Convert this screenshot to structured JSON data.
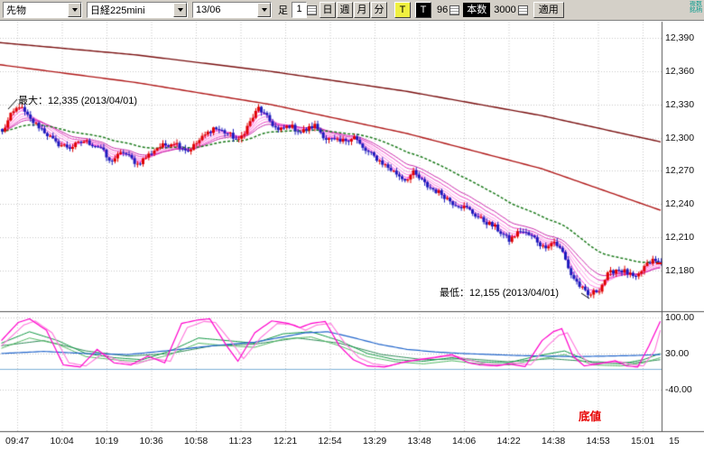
{
  "toolbar": {
    "market_select": "先物",
    "symbol_select": "日経225mini",
    "contract_select": "13/06",
    "ashi_label": "足",
    "btn_1": "1",
    "btn_day": "日",
    "btn_week": "週",
    "btn_month": "月",
    "btn_min": "分",
    "btn_t_yellow": "T",
    "btn_t_black": "T",
    "tick_value": "96",
    "honsu_label": "本数",
    "bars_value": "3000",
    "apply_btn": "適用",
    "corner_note": "複数銘柄"
  },
  "chart_data": {
    "type": "candlestick",
    "x_labels": [
      "09:47",
      "10:04",
      "10:19",
      "10:36",
      "10:58",
      "11:23",
      "12:21",
      "12:54",
      "13:29",
      "13:48",
      "14:06",
      "14:22",
      "14:38",
      "14:53",
      "15:01",
      "15"
    ],
    "main_pane": {
      "ylim": [
        12143,
        12405
      ],
      "y_ticks": [
        12390,
        12360,
        12330,
        12300,
        12270,
        12240,
        12210,
        12180
      ],
      "y_tick_labels": [
        "12,390",
        "12,360",
        "12,330",
        "12,300",
        "12,270",
        "12,240",
        "12,210",
        "12,180"
      ],
      "high": {
        "label": "最大：12,335 (2013/04/01)",
        "value": 12335
      },
      "low": {
        "label": "最低：12,155 (2013/04/01)",
        "value": 12155
      },
      "candle_count": 235,
      "close_path": [
        [
          0,
          12305
        ],
        [
          3,
          12320
        ],
        [
          6,
          12329
        ],
        [
          10,
          12316
        ],
        [
          14,
          12308
        ],
        [
          19,
          12295
        ],
        [
          24,
          12291
        ],
        [
          29,
          12297
        ],
        [
          35,
          12291
        ],
        [
          38,
          12278
        ],
        [
          43,
          12287
        ],
        [
          48,
          12276
        ],
        [
          55,
          12291
        ],
        [
          61,
          12296
        ],
        [
          66,
          12288
        ],
        [
          71,
          12300
        ],
        [
          75,
          12309
        ],
        [
          80,
          12304
        ],
        [
          84,
          12297
        ],
        [
          87,
          12310
        ],
        [
          91,
          12327
        ],
        [
          95,
          12315
        ],
        [
          98,
          12306
        ],
        [
          102,
          12311
        ],
        [
          106,
          12305
        ],
        [
          111,
          12311
        ],
        [
          115,
          12299
        ],
        [
          120,
          12296
        ],
        [
          125,
          12301
        ],
        [
          128,
          12290
        ],
        [
          133,
          12281
        ],
        [
          138,
          12271
        ],
        [
          143,
          12262
        ],
        [
          146,
          12268
        ],
        [
          151,
          12256
        ],
        [
          156,
          12249
        ],
        [
          160,
          12241
        ],
        [
          165,
          12236
        ],
        [
          170,
          12226
        ],
        [
          175,
          12219
        ],
        [
          180,
          12207
        ],
        [
          184,
          12216
        ],
        [
          189,
          12209
        ],
        [
          192,
          12201
        ],
        [
          196,
          12206
        ],
        [
          199,
          12196
        ],
        [
          202,
          12176
        ],
        [
          205,
          12166
        ],
        [
          208,
          12157
        ],
        [
          212,
          12163
        ],
        [
          215,
          12176
        ],
        [
          218,
          12181
        ],
        [
          221,
          12179
        ],
        [
          225,
          12172
        ],
        [
          228,
          12183
        ],
        [
          231,
          12189
        ],
        [
          234,
          12186
        ]
      ],
      "ma_ribbon_periods": [
        3,
        5,
        8,
        11,
        15,
        20
      ],
      "ma_green_period": 45,
      "long_ma1": [
        [
          0,
          12386
        ],
        [
          150,
          12375
        ],
        [
          300,
          12360
        ],
        [
          450,
          12342
        ],
        [
          600,
          12320
        ],
        [
          733,
          12296
        ]
      ],
      "long_ma2": [
        [
          0,
          12366
        ],
        [
          150,
          12350
        ],
        [
          300,
          12330
        ],
        [
          450,
          12304
        ],
        [
          600,
          12272
        ],
        [
          733,
          12234
        ]
      ]
    },
    "lower_pane": {
      "ylim": [
        -120,
        110
      ],
      "y_ticks": [
        100,
        30,
        -40
      ],
      "y_tick_labels": [
        "100.00",
        "30.00",
        "-40.00"
      ],
      "level_line": 0,
      "label": {
        "text": "底値",
        "color": "#e60000"
      },
      "series": [
        {
          "name": "slow-green",
          "color": "#2e8b57",
          "width": 1,
          "points": [
            [
              0,
              45
            ],
            [
              15,
              55
            ],
            [
              30,
              35
            ],
            [
              45,
              25
            ],
            [
              60,
              30
            ],
            [
              75,
              45
            ],
            [
              90,
              48
            ],
            [
              105,
              60
            ],
            [
              120,
              50
            ],
            [
              135,
              28
            ],
            [
              150,
              18
            ],
            [
              165,
              20
            ],
            [
              180,
              14
            ],
            [
              195,
              20
            ],
            [
              210,
              14
            ],
            [
              225,
              12
            ],
            [
              234,
              18
            ]
          ]
        },
        {
          "name": "light-green",
          "color": "#55bb66",
          "width": 1,
          "points": [
            [
              0,
              40
            ],
            [
              10,
              60
            ],
            [
              20,
              48
            ],
            [
              30,
              24
            ],
            [
              40,
              18
            ],
            [
              50,
              14
            ],
            [
              60,
              28
            ],
            [
              70,
              50
            ],
            [
              80,
              45
            ],
            [
              90,
              42
            ],
            [
              100,
              58
            ],
            [
              110,
              62
            ],
            [
              120,
              45
            ],
            [
              130,
              24
            ],
            [
              140,
              14
            ],
            [
              150,
              10
            ],
            [
              160,
              16
            ],
            [
              170,
              10
            ],
            [
              180,
              8
            ],
            [
              190,
              18
            ],
            [
              200,
              28
            ],
            [
              210,
              8
            ],
            [
              220,
              6
            ],
            [
              228,
              12
            ],
            [
              234,
              22
            ]
          ]
        },
        {
          "name": "green",
          "color": "#119944",
          "width": 1,
          "points": [
            [
              0,
              50
            ],
            [
              10,
              72
            ],
            [
              20,
              55
            ],
            [
              30,
              30
            ],
            [
              40,
              22
            ],
            [
              50,
              18
            ],
            [
              60,
              35
            ],
            [
              70,
              60
            ],
            [
              80,
              55
            ],
            [
              90,
              50
            ],
            [
              100,
              68
            ],
            [
              110,
              72
            ],
            [
              120,
              55
            ],
            [
              130,
              30
            ],
            [
              140,
              18
            ],
            [
              150,
              15
            ],
            [
              160,
              22
            ],
            [
              170,
              14
            ],
            [
              180,
              12
            ],
            [
              190,
              25
            ],
            [
              200,
              35
            ],
            [
              210,
              12
            ],
            [
              220,
              10
            ],
            [
              228,
              18
            ],
            [
              234,
              30
            ]
          ]
        },
        {
          "name": "blue",
          "color": "#2266cc",
          "width": 1.2,
          "points": [
            [
              0,
              30
            ],
            [
              15,
              34
            ],
            [
              30,
              30
            ],
            [
              45,
              28
            ],
            [
              60,
              36
            ],
            [
              75,
              45
            ],
            [
              90,
              52
            ],
            [
              100,
              62
            ],
            [
              108,
              70
            ],
            [
              116,
              72
            ],
            [
              124,
              62
            ],
            [
              134,
              48
            ],
            [
              144,
              38
            ],
            [
              154,
              33
            ],
            [
              164,
              30
            ],
            [
              174,
              28
            ],
            [
              184,
              26
            ],
            [
              194,
              25
            ],
            [
              204,
              24
            ],
            [
              214,
              25
            ],
            [
              224,
              26
            ],
            [
              234,
              28
            ]
          ]
        },
        {
          "name": "fast-pink",
          "color": "#ff77dd",
          "width": 1.1,
          "points": [
            [
              0,
              45
            ],
            [
              8,
              85
            ],
            [
              12,
              93
            ],
            [
              18,
              70
            ],
            [
              24,
              12
            ],
            [
              30,
              6
            ],
            [
              36,
              30
            ],
            [
              42,
              15
            ],
            [
              48,
              10
            ],
            [
              54,
              20
            ],
            [
              60,
              15
            ],
            [
              66,
              80
            ],
            [
              72,
              92
            ],
            [
              76,
              90
            ],
            [
              82,
              50
            ],
            [
              86,
              20
            ],
            [
              92,
              60
            ],
            [
              98,
              88
            ],
            [
              104,
              85
            ],
            [
              108,
              75
            ],
            [
              112,
              85
            ],
            [
              117,
              88
            ],
            [
              122,
              50
            ],
            [
              127,
              22
            ],
            [
              132,
              10
            ],
            [
              138,
              6
            ],
            [
              144,
              15
            ],
            [
              150,
              20
            ],
            [
              156,
              25
            ],
            [
              162,
              24
            ],
            [
              168,
              15
            ],
            [
              172,
              10
            ],
            [
              178,
              8
            ],
            [
              182,
              12
            ],
            [
              188,
              8
            ],
            [
              194,
              45
            ],
            [
              198,
              65
            ],
            [
              201,
              70
            ],
            [
              205,
              30
            ],
            [
              209,
              10
            ],
            [
              214,
              12
            ],
            [
              220,
              14
            ],
            [
              224,
              8
            ],
            [
              228,
              6
            ],
            [
              232,
              35
            ],
            [
              234,
              75
            ]
          ]
        },
        {
          "name": "fast-magenta",
          "color": "#ff00cc",
          "width": 1.2,
          "points": [
            [
              0,
              55
            ],
            [
              6,
              90
            ],
            [
              10,
              97
            ],
            [
              16,
              75
            ],
            [
              22,
              8
            ],
            [
              28,
              4
            ],
            [
              34,
              38
            ],
            [
              40,
              12
            ],
            [
              46,
              8
            ],
            [
              52,
              25
            ],
            [
              58,
              12
            ],
            [
              64,
              88
            ],
            [
              70,
              95
            ],
            [
              74,
              97
            ],
            [
              80,
              45
            ],
            [
              84,
              15
            ],
            [
              90,
              70
            ],
            [
              96,
              93
            ],
            [
              102,
              88
            ],
            [
              106,
              80
            ],
            [
              110,
              88
            ],
            [
              115,
              92
            ],
            [
              120,
              45
            ],
            [
              125,
              18
            ],
            [
              130,
              6
            ],
            [
              136,
              4
            ],
            [
              142,
              12
            ],
            [
              148,
              18
            ],
            [
              154,
              22
            ],
            [
              160,
              28
            ],
            [
              166,
              12
            ],
            [
              170,
              8
            ],
            [
              176,
              6
            ],
            [
              180,
              10
            ],
            [
              186,
              5
            ],
            [
              192,
              55
            ],
            [
              196,
              72
            ],
            [
              199,
              78
            ],
            [
              203,
              25
            ],
            [
              207,
              6
            ],
            [
              212,
              10
            ],
            [
              218,
              16
            ],
            [
              222,
              6
            ],
            [
              226,
              4
            ],
            [
              230,
              45
            ],
            [
              234,
              92
            ]
          ]
        }
      ]
    },
    "colors": {
      "up_candle": "#e00000",
      "down_candle": "#1c1cbe",
      "ma_green": "#1a7a1a",
      "ma_long_dark": "#7a1010",
      "ma_long_red": "#b01818",
      "ribbon": [
        "#ff2ad4",
        "#ff55dc",
        "#ff80e4",
        "#ffaaec",
        "#e93fc4",
        "#cc2fae"
      ],
      "grid": "#c9c9c9",
      "level_line": "#7fb2d8",
      "divider": "#555555"
    }
  }
}
